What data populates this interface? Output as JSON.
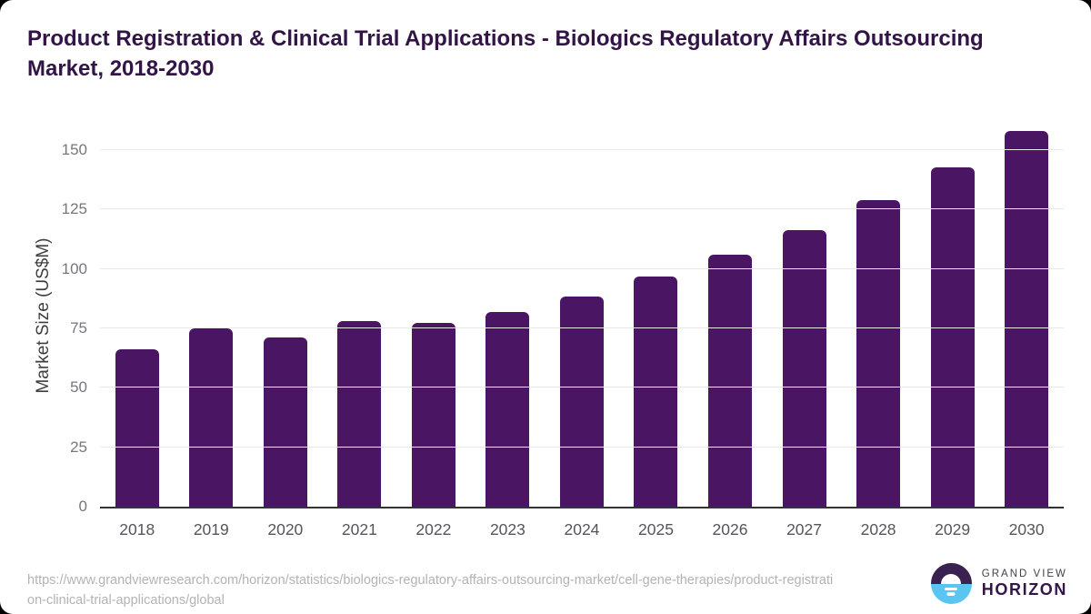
{
  "title": "Product Registration & Clinical Trial Applications - Biologics Regulatory Affairs Outsourcing Market, 2018-2030",
  "chart_data": {
    "type": "bar",
    "title": "Product Registration & Clinical Trial Applications - Biologics Regulatory Affairs Outsourcing Market, 2018-2030",
    "categories": [
      "2018",
      "2019",
      "2020",
      "2021",
      "2022",
      "2023",
      "2024",
      "2025",
      "2026",
      "2027",
      "2028",
      "2029",
      "2030"
    ],
    "values": [
      66.2,
      75.1,
      71.2,
      78.2,
      77.4,
      82.1,
      88.3,
      97.0,
      106.0,
      116.5,
      129.0,
      142.8,
      158.2
    ],
    "xlabel": "",
    "ylabel": "Market Size (US$M)",
    "ylim": [
      0,
      160
    ],
    "yticks": [
      0,
      25,
      50,
      75,
      100,
      125,
      150
    ],
    "grid": true,
    "legend": "none",
    "bar_color": "#4a1663"
  },
  "footer": {
    "source_url": "https://www.grandviewresearch.com/horizon/statistics/biologics-regulatory-affairs-outsourcing-market/cell-gene-therapies/product-registration-clinical-trial-applications/global",
    "logo": {
      "line1": "GRAND VIEW",
      "line2": "HORIZON"
    }
  },
  "colors": {
    "title_text": "#321447",
    "bar": "#4a1663",
    "axis_line": "#333333",
    "gridline": "#e8e8e8",
    "ytick_label": "#76767b",
    "xtick_label": "#55555a",
    "url_text": "#b3b3b3",
    "logo_purple": "#3a2150",
    "logo_blue": "#58c5f2",
    "brand_grand_view": "#413f4c",
    "brand_horizon": "#34154a"
  }
}
